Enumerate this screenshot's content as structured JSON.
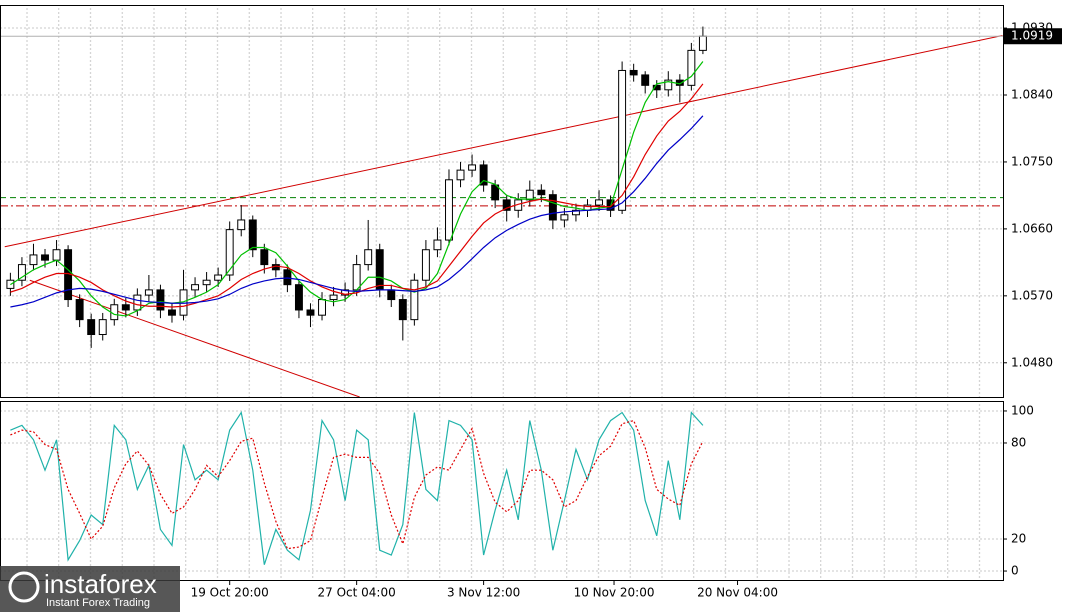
{
  "chart_data": [
    {
      "type": "candlestick",
      "xlim": [
        -0.9,
        86
      ],
      "ylim": [
        1.0434,
        1.0961
      ],
      "yticks": [
        {
          "value": 1.093,
          "label": "1.0930"
        },
        {
          "value": 1.084,
          "label": "1.0840"
        },
        {
          "value": 1.075,
          "label": "1.0750"
        },
        {
          "value": 1.066,
          "label": "1.0660"
        },
        {
          "value": 1.057,
          "label": "1.0570"
        },
        {
          "value": 1.048,
          "label": "1.0480"
        }
      ],
      "grid": true,
      "current_price": 1.0919,
      "open": [
        1.058,
        1.0591,
        1.0612,
        1.0625,
        1.0618,
        1.0632,
        1.0565,
        1.0538,
        1.0518,
        1.0538,
        1.0558,
        1.0551,
        1.0571,
        1.0578,
        1.0551,
        1.0544,
        1.0578,
        1.0585,
        1.0591,
        1.0598,
        1.0659,
        1.0672,
        1.0632,
        1.0612,
        1.0605,
        1.0585,
        1.0551,
        1.0544,
        1.0565,
        1.0571,
        1.0578,
        1.0612,
        1.0632,
        1.0578,
        1.0565,
        1.0538,
        1.0591,
        1.0632,
        1.0645,
        1.0726,
        1.0739,
        1.0746,
        1.0719,
        1.0699,
        1.0685,
        1.0699,
        1.0712,
        1.0706,
        1.0672,
        1.0679,
        1.0685,
        1.0692,
        1.0699,
        1.0685,
        1.0873,
        1.0867,
        1.0853,
        1.0847,
        1.086,
        1.0853,
        1.09
      ],
      "high": [
        1.0601,
        1.0622,
        1.064,
        1.0633,
        1.0645,
        1.0638,
        1.0572,
        1.0546,
        1.0547,
        1.0566,
        1.0567,
        1.058,
        1.0598,
        1.0585,
        1.056,
        1.0605,
        1.0595,
        1.0602,
        1.0608,
        1.067,
        1.0692,
        1.0678,
        1.064,
        1.062,
        1.0612,
        1.059,
        1.056,
        1.0575,
        1.0582,
        1.0588,
        1.0625,
        1.0672,
        1.064,
        1.0585,
        1.0572,
        1.06,
        1.0645,
        1.0662,
        1.074,
        1.075,
        1.076,
        1.0752,
        1.0726,
        1.0706,
        1.0708,
        1.0725,
        1.072,
        1.0712,
        1.0688,
        1.0694,
        1.07,
        1.0712,
        1.0705,
        1.0885,
        1.0882,
        1.0872,
        1.086,
        1.0872,
        1.0868,
        1.091,
        1.0932
      ],
      "low": [
        1.057,
        1.0583,
        1.0604,
        1.0608,
        1.061,
        1.0555,
        1.0528,
        1.05,
        1.051,
        1.053,
        1.0541,
        1.0543,
        1.0562,
        1.054,
        1.0534,
        1.0537,
        1.0568,
        1.0575,
        1.0582,
        1.059,
        1.065,
        1.0622,
        1.06,
        1.0595,
        1.0575,
        1.054,
        1.0528,
        1.0537,
        1.0556,
        1.0562,
        1.057,
        1.0604,
        1.0568,
        1.0555,
        1.051,
        1.053,
        1.0582,
        1.0622,
        1.0638,
        1.0716,
        1.073,
        1.071,
        1.0688,
        1.067,
        1.0675,
        1.069,
        1.0696,
        1.066,
        1.0662,
        1.067,
        1.0676,
        1.0684,
        1.0676,
        1.068,
        1.0858,
        1.0842,
        1.0836,
        1.0838,
        1.083,
        1.0846,
        1.0895
      ],
      "close": [
        1.0591,
        1.0612,
        1.0625,
        1.0618,
        1.0632,
        1.0565,
        1.0538,
        1.0518,
        1.0538,
        1.0558,
        1.0551,
        1.0571,
        1.0578,
        1.0551,
        1.0544,
        1.0578,
        1.0585,
        1.0591,
        1.0598,
        1.0659,
        1.0672,
        1.0632,
        1.0612,
        1.0605,
        1.0585,
        1.0551,
        1.0544,
        1.0565,
        1.0571,
        1.0578,
        1.0612,
        1.0632,
        1.0578,
        1.0565,
        1.0538,
        1.0591,
        1.0632,
        1.0645,
        1.0726,
        1.0739,
        1.0746,
        1.0719,
        1.0699,
        1.0685,
        1.0699,
        1.0712,
        1.0706,
        1.0672,
        1.0679,
        1.0685,
        1.0692,
        1.0699,
        1.0685,
        1.0873,
        1.0867,
        1.0853,
        1.0847,
        1.086,
        1.0853,
        1.09,
        1.0919
      ],
      "lines": [
        {
          "color": "#00c000",
          "values": [
            1.0585,
            1.0595,
            1.0605,
            1.0612,
            1.0618,
            1.0605,
            1.059,
            1.057,
            1.0555,
            1.0545,
            1.0543,
            1.055,
            1.056,
            1.0562,
            1.056,
            1.0562,
            1.0568,
            1.0575,
            1.0585,
            1.0605,
            1.0625,
            1.0635,
            1.0635,
            1.0628,
            1.061,
            1.059,
            1.0575,
            1.0565,
            1.0562,
            1.0565,
            1.0578,
            1.0595,
            1.0595,
            1.059,
            1.058,
            1.0575,
            1.058,
            1.06,
            1.064,
            1.068,
            1.071,
            1.0725,
            1.072,
            1.0705,
            1.07,
            1.07,
            1.07,
            1.0695,
            1.069,
            1.0688,
            1.0685,
            1.0688,
            1.069,
            1.074,
            1.079,
            1.083,
            1.0855,
            1.0858,
            1.0855,
            1.0865,
            1.0885
          ]
        },
        {
          "color": "#e00000",
          "values": [
            1.0575,
            1.058,
            1.0588,
            1.0595,
            1.06,
            1.06,
            1.0595,
            1.0588,
            1.0578,
            1.057,
            1.0563,
            1.0558,
            1.0556,
            1.0556,
            1.0555,
            1.0556,
            1.056,
            1.0565,
            1.057,
            1.058,
            1.0592,
            1.06,
            1.0606,
            1.061,
            1.0608,
            1.06,
            1.059,
            1.0582,
            1.0576,
            1.0572,
            1.0574,
            1.058,
            1.0584,
            1.0584,
            1.058,
            1.0578,
            1.0582,
            1.059,
            1.061,
            1.063,
            1.065,
            1.0668,
            1.068,
            1.0688,
            1.0693,
            1.0697,
            1.07,
            1.0698,
            1.0695,
            1.0692,
            1.069,
            1.069,
            1.069,
            1.0705,
            1.073,
            1.076,
            1.0785,
            1.0805,
            1.0818,
            1.0835,
            1.0855
          ]
        },
        {
          "color": "#0000c8",
          "values": [
            1.0555,
            1.0558,
            1.0562,
            1.0568,
            1.0574,
            1.0578,
            1.058,
            1.0579,
            1.0576,
            1.0572,
            1.0568,
            1.0564,
            1.0562,
            1.0561,
            1.056,
            1.056,
            1.0561,
            1.0563,
            1.0566,
            1.0572,
            1.058,
            1.0586,
            1.059,
            1.0593,
            1.0594,
            1.0592,
            1.0588,
            1.0584,
            1.058,
            1.0577,
            1.0576,
            1.0577,
            1.0578,
            1.0578,
            1.0577,
            1.0576,
            1.0578,
            1.0582,
            1.0592,
            1.0605,
            1.062,
            1.0635,
            1.0648,
            1.0658,
            1.0666,
            1.0673,
            1.0678,
            1.0681,
            1.0683,
            1.0684,
            1.0685,
            1.0686,
            1.0687,
            1.0695,
            1.071,
            1.0728,
            1.0748,
            1.0766,
            1.078,
            1.0795,
            1.0812
          ]
        }
      ],
      "hlines": [
        {
          "value": 1.0702,
          "color": "#008000",
          "style": "dashed"
        },
        {
          "value": 1.0691,
          "color": "#c00000",
          "style": "dashdot"
        }
      ],
      "trendlines": [
        {
          "color": "#d00000",
          "x": [
            -0.49,
            85.96
          ],
          "y": [
            1.0636,
            1.092
          ]
        },
        {
          "color": "#d00000",
          "x": [
            1.68,
            30.26
          ],
          "y": [
            1.0591,
            1.0434
          ]
        }
      ]
    },
    {
      "type": "line",
      "xlim": [
        -0.9,
        86
      ],
      "ylim": [
        -5.6,
        105.6
      ],
      "yticks": [
        100,
        80,
        20,
        0
      ],
      "xticks": [
        {
          "value": 19,
          "label": "19 Oct 20:00"
        },
        {
          "value": 30,
          "label": "27 Oct 04:00"
        },
        {
          "value": 41,
          "label": "3 Nov 12:00"
        },
        {
          "value": 52.3,
          "label": "10 Nov 20:00"
        },
        {
          "value": 63,
          "label": "20 Nov 04:00"
        }
      ],
      "lines": [
        {
          "color": "#20b2aa",
          "style": "solid",
          "values": [
            88,
            91,
            82,
            63,
            82,
            7,
            19,
            35,
            29,
            91,
            82,
            51,
            66,
            26,
            16,
            79,
            57,
            63,
            57,
            88,
            99,
            63,
            4,
            26,
            13,
            7,
            38,
            94,
            82,
            44,
            88,
            82,
            13,
            10,
            29,
            99,
            51,
            44,
            94,
            91,
            82,
            10,
            38,
            63,
            32,
            94,
            63,
            13,
            44,
            76,
            57,
            82,
            94,
            99,
            88,
            44,
            22,
            69,
            32,
            99,
            91
          ]
        },
        {
          "color": "#e00000",
          "style": "dotted",
          "values": [
            85,
            88,
            87,
            79,
            76,
            51,
            36,
            20,
            28,
            52,
            67,
            75,
            66,
            48,
            36,
            40,
            51,
            66,
            59,
            69,
            81,
            83,
            55,
            31,
            14,
            15,
            19,
            46,
            71,
            73,
            71,
            71,
            61,
            35,
            17,
            46,
            60,
            65,
            63,
            76,
            89,
            61,
            43,
            37,
            44,
            63,
            63,
            57,
            40,
            44,
            59,
            72,
            78,
            92,
            94,
            77,
            51,
            45,
            41,
            67,
            81
          ]
        }
      ]
    }
  ],
  "logo": {
    "name": "instaforex",
    "tagline": "Instant Forex Trading"
  }
}
